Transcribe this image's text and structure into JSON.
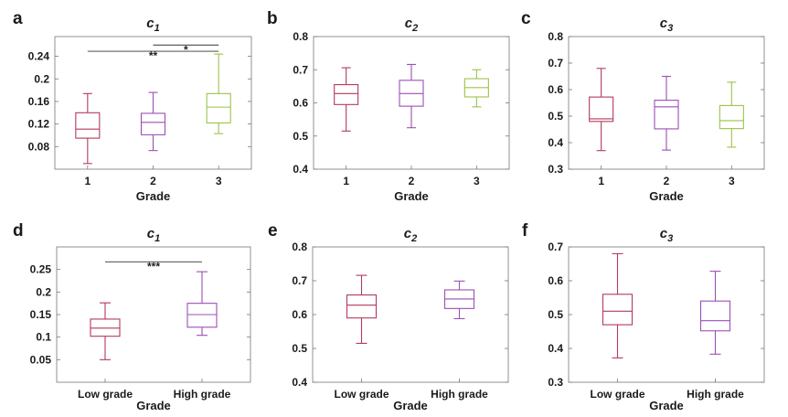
{
  "figure": {
    "colors": {
      "1": "#b33a5a",
      "2": "#9b4fb5",
      "3": "#9bc24a",
      "axis": "#777777",
      "sig": "#333333"
    }
  },
  "chart_data": [
    {
      "panel": "a",
      "type": "box",
      "title": "c",
      "title_sub": "1",
      "categories": [
        "1",
        "2",
        "3"
      ],
      "xlabel": "Grade",
      "ylim": [
        0.04,
        0.275
      ],
      "yticks": [
        0.08,
        0.12,
        0.16,
        0.2,
        0.24
      ],
      "tick_labels": [
        "0.08",
        "0.12",
        "0.16",
        "0.2",
        "0.24"
      ],
      "boxes": [
        {
          "category": "1",
          "color_key": "1",
          "whisker_low": 0.05,
          "q1": 0.095,
          "median": 0.111,
          "q3": 0.14,
          "whisker_high": 0.174
        },
        {
          "category": "2",
          "color_key": "2",
          "whisker_low": 0.073,
          "q1": 0.101,
          "median": 0.123,
          "q3": 0.139,
          "whisker_high": 0.176
        },
        {
          "category": "3",
          "color_key": "3",
          "whisker_low": 0.103,
          "q1": 0.122,
          "median": 0.15,
          "q3": 0.174,
          "whisker_high": 0.244
        }
      ],
      "significance": [
        {
          "from": "2",
          "to": "3",
          "label": "*",
          "y": 0.26
        },
        {
          "from": "1",
          "to": "3",
          "label": "**",
          "y": 0.249
        }
      ]
    },
    {
      "panel": "b",
      "type": "box",
      "title": "c",
      "title_sub": "2",
      "categories": [
        "1",
        "2",
        "3"
      ],
      "xlabel": "Grade",
      "ylim": [
        0.4,
        0.8
      ],
      "yticks": [
        0.4,
        0.5,
        0.6,
        0.7,
        0.8
      ],
      "tick_labels": [
        "0.4",
        "0.5",
        "0.6",
        "0.7",
        "0.8"
      ],
      "boxes": [
        {
          "category": "1",
          "color_key": "1",
          "whisker_low": 0.515,
          "q1": 0.595,
          "median": 0.628,
          "q3": 0.655,
          "whisker_high": 0.706
        },
        {
          "category": "2",
          "color_key": "2",
          "whisker_low": 0.525,
          "q1": 0.59,
          "median": 0.628,
          "q3": 0.668,
          "whisker_high": 0.716
        },
        {
          "category": "3",
          "color_key": "3",
          "whisker_low": 0.588,
          "q1": 0.618,
          "median": 0.646,
          "q3": 0.673,
          "whisker_high": 0.7
        }
      ],
      "significance": []
    },
    {
      "panel": "c",
      "type": "box",
      "title": "c",
      "title_sub": "3",
      "categories": [
        "1",
        "2",
        "3"
      ],
      "xlabel": "Grade",
      "ylim": [
        0.3,
        0.8
      ],
      "yticks": [
        0.3,
        0.4,
        0.5,
        0.6,
        0.7,
        0.8
      ],
      "tick_labels": [
        "0.3",
        "0.4",
        "0.5",
        "0.6",
        "0.7",
        "0.8"
      ],
      "boxes": [
        {
          "category": "1",
          "color_key": "1",
          "whisker_low": 0.37,
          "q1": 0.48,
          "median": 0.49,
          "q3": 0.572,
          "whisker_high": 0.68
        },
        {
          "category": "2",
          "color_key": "2",
          "whisker_low": 0.372,
          "q1": 0.452,
          "median": 0.535,
          "q3": 0.56,
          "whisker_high": 0.65
        },
        {
          "category": "3",
          "color_key": "3",
          "whisker_low": 0.383,
          "q1": 0.453,
          "median": 0.483,
          "q3": 0.54,
          "whisker_high": 0.628
        }
      ],
      "significance": []
    },
    {
      "panel": "d",
      "type": "box",
      "title": "c",
      "title_sub": "1",
      "categories": [
        "Low grade",
        "High grade"
      ],
      "xlabel": "Grade",
      "ylim": [
        0.0,
        0.3
      ],
      "yticks": [
        0.05,
        0.1,
        0.15,
        0.2,
        0.25
      ],
      "tick_labels": [
        "0.05",
        "0.1",
        "0.15",
        "0.2",
        "0.25"
      ],
      "boxes": [
        {
          "category": "Low grade",
          "color_key": "1",
          "whisker_low": 0.05,
          "q1": 0.102,
          "median": 0.12,
          "q3": 0.14,
          "whisker_high": 0.176
        },
        {
          "category": "High grade",
          "color_key": "2",
          "whisker_low": 0.104,
          "q1": 0.122,
          "median": 0.15,
          "q3": 0.175,
          "whisker_high": 0.245
        }
      ],
      "significance": [
        {
          "from": "Low grade",
          "to": "High grade",
          "label": "***",
          "y": 0.267
        }
      ]
    },
    {
      "panel": "e",
      "type": "box",
      "title": "c",
      "title_sub": "2",
      "categories": [
        "Low grade",
        "High grade"
      ],
      "xlabel": "Grade",
      "ylim": [
        0.4,
        0.8
      ],
      "yticks": [
        0.4,
        0.5,
        0.6,
        0.7,
        0.8
      ],
      "tick_labels": [
        "0.4",
        "0.5",
        "0.6",
        "0.7",
        "0.8"
      ],
      "boxes": [
        {
          "category": "Low grade",
          "color_key": "1",
          "whisker_low": 0.515,
          "q1": 0.59,
          "median": 0.628,
          "q3": 0.658,
          "whisker_high": 0.716
        },
        {
          "category": "High grade",
          "color_key": "2",
          "whisker_low": 0.588,
          "q1": 0.618,
          "median": 0.646,
          "q3": 0.673,
          "whisker_high": 0.699
        }
      ],
      "significance": []
    },
    {
      "panel": "f",
      "type": "box",
      "title": "c",
      "title_sub": "3",
      "categories": [
        "Low grade",
        "High grade"
      ],
      "xlabel": "Grade",
      "ylim": [
        0.3,
        0.7
      ],
      "yticks": [
        0.3,
        0.4,
        0.5,
        0.6,
        0.7
      ],
      "tick_labels": [
        "0.3",
        "0.4",
        "0.5",
        "0.6",
        "0.7"
      ],
      "boxes": [
        {
          "category": "Low grade",
          "color_key": "1",
          "whisker_low": 0.372,
          "q1": 0.47,
          "median": 0.51,
          "q3": 0.56,
          "whisker_high": 0.68
        },
        {
          "category": "High grade",
          "color_key": "2",
          "whisker_low": 0.383,
          "q1": 0.452,
          "median": 0.482,
          "q3": 0.54,
          "whisker_high": 0.628
        }
      ],
      "significance": []
    }
  ]
}
